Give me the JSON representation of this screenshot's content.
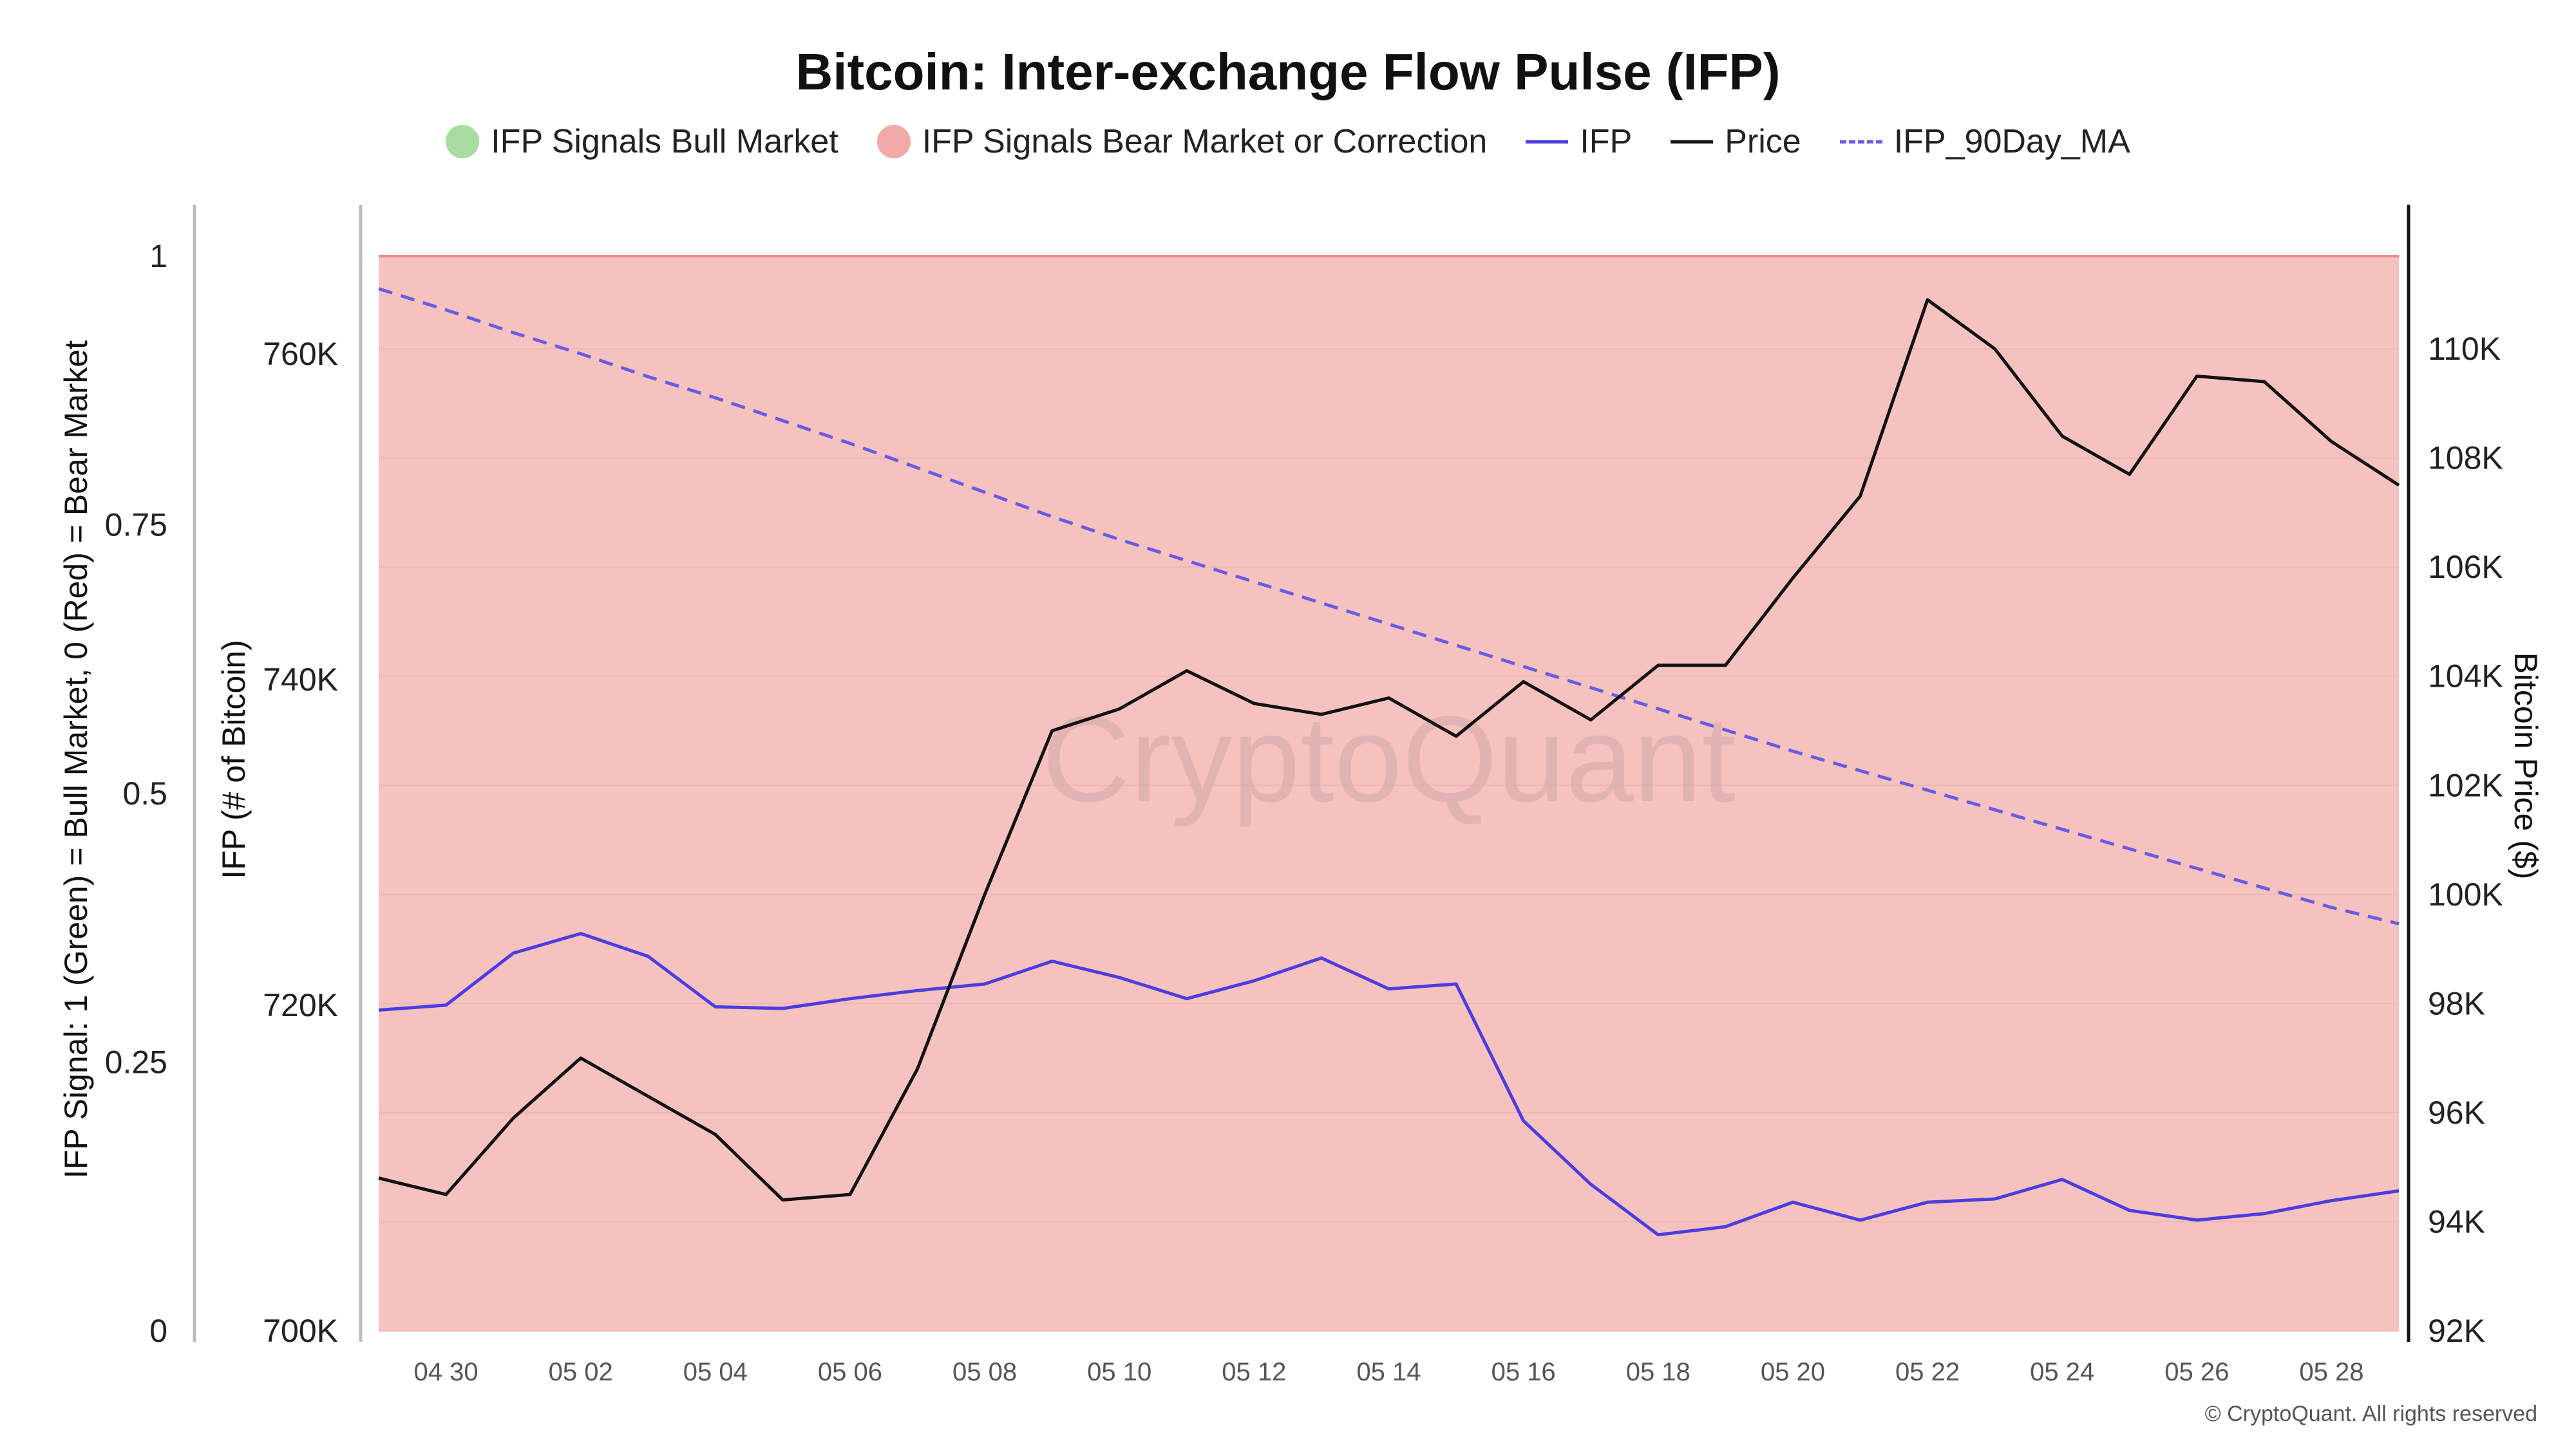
{
  "chart_data": {
    "type": "line",
    "title": "Bitcoin: Inter-exchange Flow Pulse (IFP)",
    "legend": [
      {
        "label": "IFP Signals Bull Market",
        "kind": "dot",
        "color": "#a8dca0"
      },
      {
        "label": "IFP Signals Bear Market or Correction",
        "kind": "dot",
        "color": "#f2aaa6"
      },
      {
        "label": "IFP",
        "kind": "line",
        "color": "#4b3de0"
      },
      {
        "label": "Price",
        "kind": "line",
        "color": "#111111"
      },
      {
        "label": "IFP_90Day_MA",
        "kind": "dashed",
        "color": "#6a5be6"
      }
    ],
    "axes": {
      "signal": {
        "title": "IFP Signal: 1 (Green) = Bull Market, 0 (Red) = Bear Market",
        "ticks": [
          "0",
          "0.25",
          "0.5",
          "0.75",
          "1"
        ],
        "range": [
          0,
          1
        ]
      },
      "ifp": {
        "title": "IFP (# of Bitcoin)",
        "ticks": [
          "700K",
          "720K",
          "740K",
          "760K"
        ],
        "range": [
          700000,
          766000
        ]
      },
      "price": {
        "title": "Bitcoin Price ($)",
        "ticks": [
          "92K",
          "94K",
          "96K",
          "98K",
          "100K",
          "102K",
          "104K",
          "106K",
          "108K",
          "110K"
        ],
        "range": [
          92000,
          111700
        ]
      }
    },
    "x_tick_labels": [
      "04 30",
      "05 02",
      "05 04",
      "05 06",
      "05 08",
      "05 10",
      "05 12",
      "05 14",
      "05 16",
      "05 18",
      "05 20",
      "05 22",
      "05 24",
      "05 26",
      "05 28"
    ],
    "x": [
      "2025-04-29",
      "2025-04-30",
      "2025-05-01",
      "2025-05-02",
      "2025-05-03",
      "2025-05-04",
      "2025-05-05",
      "2025-05-06",
      "2025-05-07",
      "2025-05-08",
      "2025-05-09",
      "2025-05-10",
      "2025-05-11",
      "2025-05-12",
      "2025-05-13",
      "2025-05-14",
      "2025-05-15",
      "2025-05-16",
      "2025-05-17",
      "2025-05-18",
      "2025-05-19",
      "2025-05-20",
      "2025-05-21",
      "2025-05-22",
      "2025-05-23",
      "2025-05-24",
      "2025-05-25",
      "2025-05-26",
      "2025-05-27",
      "2025-05-28",
      "2025-05-29"
    ],
    "series": [
      {
        "name": "IFP",
        "axis": "ifp",
        "color": "#4b3de0",
        "values": [
          719700,
          720000,
          723200,
          724400,
          723000,
          719900,
          719800,
          720400,
          720900,
          721300,
          722700,
          721700,
          720400,
          721500,
          722900,
          721000,
          721300,
          712900,
          709000,
          705900,
          706400,
          707900,
          706800,
          707900,
          708100,
          709300,
          707400,
          706800,
          707200,
          708000,
          708600
        ]
      },
      {
        "name": "Price",
        "axis": "price",
        "color": "#111111",
        "values": [
          94800,
          94500,
          95900,
          97000,
          96300,
          95600,
          94400,
          94500,
          96800,
          100000,
          103000,
          103400,
          104100,
          103500,
          103300,
          103600,
          102900,
          103900,
          103200,
          104200,
          104200,
          105800,
          107300,
          110900,
          110000,
          108400,
          107700,
          109500,
          109400,
          108300,
          107500
        ]
      },
      {
        "name": "IFP_90Day_MA",
        "axis": "ifp",
        "color": "#6a5be6",
        "dashed": true,
        "values": [
          764000,
          762700,
          761300,
          760000,
          758600,
          757300,
          755900,
          754500,
          753000,
          751500,
          750000,
          748600,
          747300,
          746000,
          744700,
          743400,
          742100,
          740800,
          739500,
          738200,
          736900,
          735600,
          734400,
          733200,
          732000,
          730800,
          729600,
          728400,
          727200,
          726000,
          725000
        ]
      },
      {
        "name": "IFP Signals Bear Market or Correction",
        "axis": "signal",
        "color": "#f2aaa6",
        "values": [
          1,
          1,
          1,
          1,
          1,
          1,
          1,
          1,
          1,
          1,
          1,
          1,
          1,
          1,
          1,
          1,
          1,
          1,
          1,
          1,
          1,
          1,
          1,
          1,
          1,
          1,
          1,
          1,
          1,
          1,
          1
        ]
      }
    ],
    "grid": true
  },
  "watermark": "CryptoQuant",
  "copyright": "© CryptoQuant. All rights reserved"
}
